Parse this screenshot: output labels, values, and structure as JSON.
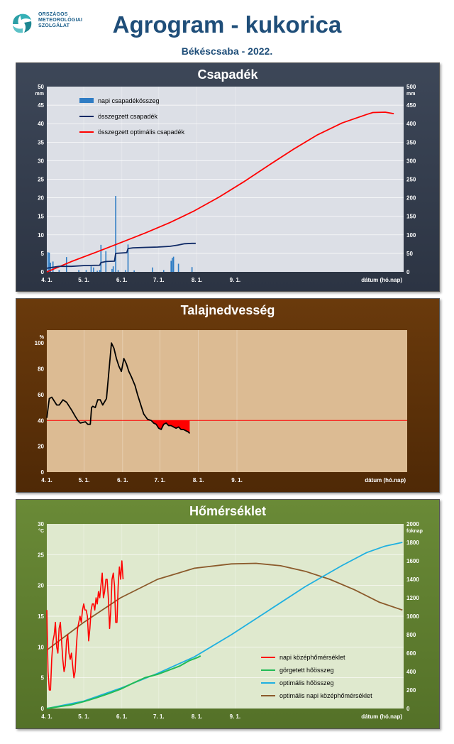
{
  "header": {
    "org_line1": "ORSZÁGOS",
    "org_line2": "METEOROLÓGIAI",
    "org_line3": "SZOLGÁLAT",
    "title": "Agrogram - kukorica",
    "subtitle": "Békéscsaba - 2022."
  },
  "colors": {
    "precip_bar": "#2e7cc4",
    "precip_cum": "#0f2a66",
    "precip_opt": "#ff0000",
    "soil_line": "#000000",
    "soil_threshold": "#ff0000",
    "temp_daily": "#ff0000",
    "temp_heatsum": "#22bb55",
    "temp_opt_heatsum": "#1fb0e0",
    "temp_opt_daily": "#8b5a2b"
  },
  "chart_data": [
    {
      "type": "bar",
      "title": "Csapadék",
      "ylabel_left": "mm",
      "ylabel_right": "mm",
      "xlabel": "dátum (hó.nap)",
      "x_ticks": [
        "4. 1.",
        "5. 1.",
        "6. 1.",
        "7. 1.",
        "8. 1.",
        "9. 1."
      ],
      "ylim_left": [
        0,
        50
      ],
      "ylim_right": [
        0,
        500
      ],
      "yticks_left": [
        "0",
        "5",
        "10",
        "15",
        "20",
        "25",
        "30",
        "35",
        "40",
        "45",
        "50"
      ],
      "yticks_right": [
        "0",
        "50",
        "100",
        "150",
        "200",
        "250",
        "300",
        "350",
        "400",
        "450",
        "500"
      ],
      "legend": [
        "napi csapadékösszeg",
        "összegzett csapadék",
        "összegzett optimális csapadék"
      ],
      "series": [
        {
          "name": "napi csapadékösszeg",
          "axis": "left",
          "points": [
            [
              1,
              5.3
            ],
            [
              2,
              5.2
            ],
            [
              3,
              2.5
            ],
            [
              5,
              2.8
            ],
            [
              10,
              0.5
            ],
            [
              16,
              4
            ],
            [
              26,
              0.5
            ],
            [
              32,
              0.5
            ],
            [
              36,
              1.5
            ],
            [
              38,
              1.2
            ],
            [
              41,
              0.3
            ],
            [
              43,
              0.5
            ],
            [
              44,
              7.3
            ],
            [
              48,
              5.6
            ],
            [
              53,
              0.8
            ],
            [
              54,
              1.5
            ],
            [
              56,
              20.5
            ],
            [
              58,
              0.5
            ],
            [
              64,
              0.5
            ],
            [
              66,
              7.4
            ],
            [
              71,
              0.4
            ],
            [
              86,
              1.2
            ],
            [
              95,
              0.5
            ],
            [
              101,
              3
            ],
            [
              102,
              3.8
            ],
            [
              103,
              4.1
            ],
            [
              107,
              2.2
            ],
            [
              118,
              1.3
            ]
          ]
        },
        {
          "name": "összegzett csapadék",
          "axis": "right",
          "points": [
            [
              0,
              10
            ],
            [
              10,
              15
            ],
            [
              20,
              15
            ],
            [
              30,
              17
            ],
            [
              43,
              18
            ],
            [
              44,
              25
            ],
            [
              48,
              28
            ],
            [
              55,
              29
            ],
            [
              56,
              50
            ],
            [
              65,
              52
            ],
            [
              66,
              63
            ],
            [
              70,
              65
            ],
            [
              80,
              66
            ],
            [
              90,
              67
            ],
            [
              100,
              69
            ],
            [
              106,
              72
            ],
            [
              112,
              76
            ],
            [
              118,
              77
            ],
            [
              121,
              77
            ]
          ]
        },
        {
          "name": "összegzett optimális csapadék",
          "axis": "right",
          "points": [
            [
              0,
              0
            ],
            [
              20,
              28
            ],
            [
              40,
              53
            ],
            [
              60,
              79
            ],
            [
              80,
              105
            ],
            [
              100,
              133
            ],
            [
              120,
              165
            ],
            [
              140,
              202
            ],
            [
              160,
              243
            ],
            [
              180,
              287
            ],
            [
              200,
              330
            ],
            [
              220,
              370
            ],
            [
              240,
              402
            ],
            [
              260,
              425
            ],
            [
              265,
              430
            ],
            [
              275,
              431
            ],
            [
              282,
              427
            ]
          ]
        }
      ]
    },
    {
      "type": "line",
      "title": "Talajnedvesség",
      "ylabel": "%",
      "xlabel": "dátum (hó.nap)",
      "x_ticks": [
        "4. 1.",
        "5. 1.",
        "6. 1.",
        "7. 1.",
        "8. 1.",
        "9. 1."
      ],
      "ylim": [
        0,
        110
      ],
      "yticks": [
        "0",
        "20",
        "40",
        "60",
        "80",
        "100"
      ],
      "threshold": 40,
      "series": [
        {
          "name": "talajnedvesség",
          "points": [
            [
              0,
              42
            ],
            [
              2,
              57
            ],
            [
              4,
              58
            ],
            [
              8,
              52
            ],
            [
              10,
              52
            ],
            [
              13,
              56
            ],
            [
              16,
              54
            ],
            [
              20,
              48
            ],
            [
              23,
              43
            ],
            [
              25,
              40
            ],
            [
              27,
              38
            ],
            [
              31,
              39
            ],
            [
              33,
              37
            ],
            [
              35,
              37
            ],
            [
              36,
              50
            ],
            [
              37,
              51
            ],
            [
              39,
              50
            ],
            [
              41,
              56
            ],
            [
              43,
              56
            ],
            [
              45,
              52
            ],
            [
              48,
              57
            ],
            [
              52,
              100
            ],
            [
              54,
              96
            ],
            [
              56,
              88
            ],
            [
              58,
              82
            ],
            [
              60,
              78
            ],
            [
              62,
              88
            ],
            [
              64,
              84
            ],
            [
              66,
              78
            ],
            [
              68,
              74
            ],
            [
              71,
              67
            ],
            [
              73,
              60
            ],
            [
              76,
              51
            ],
            [
              78,
              45
            ],
            [
              81,
              41
            ],
            [
              84,
              40
            ],
            [
              86,
              38
            ],
            [
              88,
              37
            ],
            [
              90,
              34
            ],
            [
              92,
              33
            ],
            [
              94,
              37
            ],
            [
              96,
              38
            ],
            [
              98,
              36
            ],
            [
              100,
              36
            ],
            [
              102,
              35
            ],
            [
              104,
              34
            ],
            [
              106,
              35
            ],
            [
              108,
              33
            ],
            [
              110,
              33
            ],
            [
              112,
              32
            ],
            [
              114,
              31
            ],
            [
              115,
              30
            ]
          ]
        }
      ]
    },
    {
      "type": "line",
      "title": "Hőmérséklet",
      "ylabel_left": "°C",
      "ylabel_right": "foknap",
      "xlabel": "dátum (hó.nap)",
      "x_ticks": [
        "4. 1.",
        "5. 1.",
        "6. 1.",
        "7. 1.",
        "8. 1.",
        "9. 1."
      ],
      "ylim_left": [
        0,
        30
      ],
      "ylim_right": [
        0,
        2000
      ],
      "yticks_left": [
        "0",
        "5",
        "10",
        "15",
        "20",
        "25",
        "30"
      ],
      "yticks_right": [
        "0",
        "200",
        "400",
        "600",
        "800",
        "1000",
        "1200",
        "1400",
        "1600",
        "1800",
        "2000"
      ],
      "legend": [
        "napi középhőmérséklet",
        "görgetett hőösszeg",
        "optimális hőösszeg",
        "optimális napi középhőmérséklet"
      ],
      "series": [
        {
          "name": "napi középhőmérséklet",
          "axis": "left",
          "points": [
            [
              0,
              16
            ],
            [
              1,
              6
            ],
            [
              2,
              3
            ],
            [
              3,
              3
            ],
            [
              4,
              8
            ],
            [
              5,
              11
            ],
            [
              6,
              12
            ],
            [
              7,
              14
            ],
            [
              8,
              10
            ],
            [
              9,
              9
            ],
            [
              10,
              13
            ],
            [
              11,
              14
            ],
            [
              12,
              11
            ],
            [
              13,
              8
            ],
            [
              14,
              6
            ],
            [
              15,
              7
            ],
            [
              16,
              11
            ],
            [
              17,
              12
            ],
            [
              18,
              9
            ],
            [
              19,
              8
            ],
            [
              20,
              9
            ],
            [
              21,
              7
            ],
            [
              22,
              5
            ],
            [
              23,
              6
            ],
            [
              24,
              10
            ],
            [
              25,
              13
            ],
            [
              26,
              14
            ],
            [
              27,
              15
            ],
            [
              28,
              14
            ],
            [
              29,
              16
            ],
            [
              30,
              17
            ],
            [
              31,
              16
            ],
            [
              32,
              16
            ],
            [
              33,
              15
            ],
            [
              34,
              11
            ],
            [
              35,
              13
            ],
            [
              36,
              16
            ],
            [
              37,
              17
            ],
            [
              38,
              17
            ],
            [
              39,
              16
            ],
            [
              40,
              18
            ],
            [
              41,
              17
            ],
            [
              42,
              19
            ],
            [
              43,
              18
            ],
            [
              44,
              20
            ],
            [
              45,
              22
            ],
            [
              46,
              18
            ],
            [
              47,
              19
            ],
            [
              48,
              21
            ],
            [
              49,
              21
            ],
            [
              50,
              18
            ],
            [
              51,
              13
            ],
            [
              52,
              16
            ],
            [
              53,
              21
            ],
            [
              54,
              22
            ],
            [
              55,
              20
            ],
            [
              56,
              14
            ],
            [
              57,
              14
            ],
            [
              58,
              20
            ],
            [
              59,
              23
            ],
            [
              60,
              21
            ],
            [
              61,
              24
            ],
            [
              62,
              21
            ]
          ]
        },
        {
          "name": "görgetett hőösszeg",
          "axis": "right",
          "points": [
            [
              0,
              0
            ],
            [
              10,
              20
            ],
            [
              20,
              40
            ],
            [
              30,
              75
            ],
            [
              40,
              115
            ],
            [
              50,
              160
            ],
            [
              60,
              210
            ],
            [
              70,
              275
            ],
            [
              80,
              335
            ],
            [
              90,
              370
            ],
            [
              100,
              420
            ],
            [
              104,
              440
            ],
            [
              108,
              460
            ],
            [
              112,
              490
            ],
            [
              116,
              520
            ],
            [
              120,
              540
            ],
            [
              123,
              555
            ],
            [
              125,
              570
            ]
          ]
        },
        {
          "name": "optimális hőösszeg",
          "axis": "right",
          "points": [
            [
              0,
              0
            ],
            [
              30,
              80
            ],
            [
              60,
              220
            ],
            [
              90,
              380
            ],
            [
              120,
              560
            ],
            [
              150,
              800
            ],
            [
              180,
              1060
            ],
            [
              210,
              1320
            ],
            [
              240,
              1550
            ],
            [
              260,
              1690
            ],
            [
              275,
              1760
            ],
            [
              289,
              1800
            ]
          ]
        },
        {
          "name": "optimális napi középhőmérséklet",
          "axis": "left",
          "points": [
            [
              0,
              9.5
            ],
            [
              30,
              14
            ],
            [
              60,
              18
            ],
            [
              90,
              21
            ],
            [
              120,
              22.8
            ],
            [
              150,
              23.5
            ],
            [
              170,
              23.6
            ],
            [
              190,
              23.2
            ],
            [
              210,
              22.3
            ],
            [
              230,
              21
            ],
            [
              250,
              19.3
            ],
            [
              270,
              17.3
            ],
            [
              289,
              16
            ]
          ]
        }
      ]
    }
  ]
}
